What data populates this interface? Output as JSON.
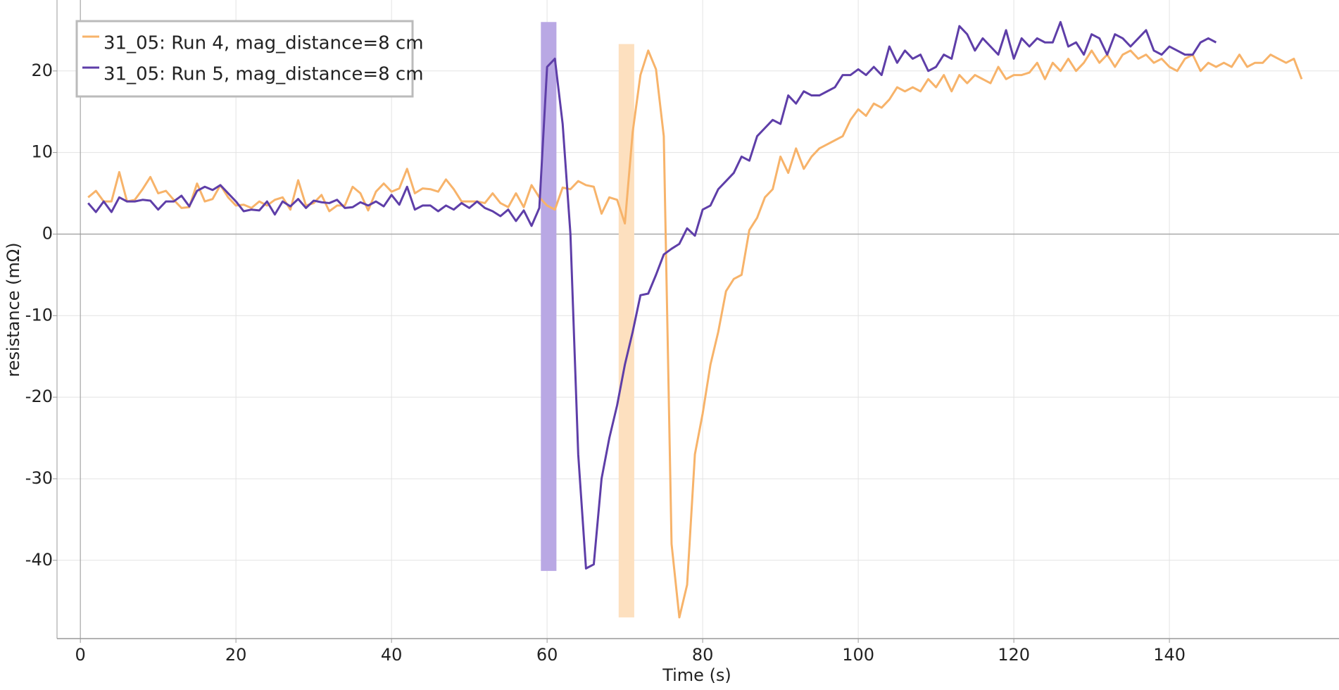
{
  "chart_data": {
    "type": "line",
    "xlabel": "Time (s)",
    "ylabel": "resistance (mΩ)",
    "xlim": [
      -3,
      161.8
    ],
    "ylim": [
      -49.6,
      28.7
    ],
    "xticks": [
      0,
      20,
      40,
      60,
      80,
      100,
      120,
      140
    ],
    "yticks": [
      -40,
      -30,
      -20,
      -10,
      0,
      10,
      20
    ],
    "grid": true,
    "legend": "upper left",
    "spans": [
      {
        "x0": 59.2,
        "x1": 61.2,
        "y0": -41.3,
        "y1": 26,
        "color": "#b9a8e4"
      },
      {
        "x0": 69.2,
        "x1": 71.2,
        "y0": -47,
        "y1": 23.3,
        "color": "#fde0bf"
      }
    ],
    "series": [
      {
        "name": "31_05: Run 4, mag_distance=8 cm",
        "color": "#f7b36a",
        "x": [
          1,
          2,
          3,
          4,
          5,
          6,
          7,
          8,
          9,
          10,
          11,
          12,
          13,
          14,
          15,
          16,
          17,
          18,
          19,
          20,
          21,
          22,
          23,
          24,
          25,
          26,
          27,
          28,
          29,
          30,
          31,
          32,
          33,
          34,
          35,
          36,
          37,
          38,
          39,
          40,
          41,
          42,
          43,
          44,
          45,
          46,
          47,
          48,
          49,
          50,
          51,
          52,
          53,
          54,
          55,
          56,
          57,
          58,
          59,
          60,
          61,
          62,
          63,
          64,
          65,
          66,
          67,
          68,
          69,
          70,
          71,
          72,
          73,
          74,
          75,
          76,
          77,
          78,
          79,
          80,
          81,
          82,
          83,
          84,
          85,
          86,
          87,
          88,
          89,
          90,
          91,
          92,
          93,
          94,
          95,
          96,
          97,
          98,
          99,
          100,
          101,
          102,
          103,
          104,
          105,
          106,
          107,
          108,
          109,
          110,
          111,
          112,
          113,
          114,
          115,
          116,
          117,
          118,
          119,
          120,
          121,
          122,
          123,
          124,
          125,
          126,
          127,
          128,
          129,
          130,
          131,
          132,
          133,
          134,
          135,
          136,
          137,
          138,
          139,
          140,
          141,
          142,
          143,
          144,
          145,
          146,
          147,
          148,
          149,
          150,
          151,
          152,
          153,
          154,
          155,
          156,
          157
        ],
        "values": [
          4.5,
          5.3,
          4,
          4,
          7.6,
          4,
          4.2,
          5.5,
          7,
          5,
          5.3,
          4.2,
          3.2,
          3.3,
          6.2,
          4,
          4.3,
          6,
          4.5,
          3.5,
          3.6,
          3.2,
          4,
          3.5,
          4.2,
          4.5,
          3,
          6.6,
          3.5,
          3.8,
          4.8,
          2.8,
          3.5,
          3.5,
          5.8,
          5,
          2.9,
          5.2,
          6.2,
          5.2,
          5.6,
          8,
          5,
          5.6,
          5.5,
          5.2,
          6.7,
          5.5,
          4,
          4,
          4,
          3.8,
          5,
          3.8,
          3.3,
          5,
          3.3,
          6,
          4.5,
          3.5,
          3,
          5.7,
          5.5,
          6.5,
          6,
          5.8,
          2.5,
          4.5,
          4.2,
          1.3,
          12.5,
          19.5,
          22.5,
          20.2,
          12,
          -38,
          -47,
          -43,
          -27,
          -22,
          -16,
          -12,
          -7,
          -5.5,
          -5,
          0.5,
          2,
          4.5,
          5.5,
          9.5,
          7.5,
          10.5,
          8,
          9.5,
          10.5,
          11,
          11.5,
          12,
          14,
          15.3,
          14.5,
          16,
          15.5,
          16.5,
          18,
          17.5,
          18,
          17.5,
          19,
          18,
          19.5,
          17.5,
          19.5,
          18.5,
          19.5,
          19,
          18.5,
          20.5,
          19,
          19.5,
          19.5,
          19.8,
          21,
          19,
          21,
          20,
          21.5,
          20,
          21,
          22.5,
          21,
          22,
          20.5,
          22,
          22.5,
          21.5,
          22,
          21,
          21.5,
          20.5,
          20,
          21.5,
          22,
          20,
          21,
          20.5,
          21,
          20.5,
          22,
          20.5,
          21,
          21,
          22,
          21.5,
          21,
          21.5,
          19
        ]
      },
      {
        "name": "31_05: Run 5, mag_distance=8 cm",
        "color": "#5e3ea8",
        "x": [
          1,
          2,
          3,
          4,
          5,
          6,
          7,
          8,
          9,
          10,
          11,
          12,
          13,
          14,
          15,
          16,
          17,
          18,
          19,
          20,
          21,
          22,
          23,
          24,
          25,
          26,
          27,
          28,
          29,
          30,
          31,
          32,
          33,
          34,
          35,
          36,
          37,
          38,
          39,
          40,
          41,
          42,
          43,
          44,
          45,
          46,
          47,
          48,
          49,
          50,
          51,
          52,
          53,
          54,
          55,
          56,
          57,
          58,
          59,
          60,
          61,
          62,
          63,
          64,
          65,
          66,
          67,
          68,
          69,
          70,
          71,
          72,
          73,
          74,
          75,
          76,
          77,
          78,
          79,
          80,
          81,
          82,
          83,
          84,
          85,
          86,
          87,
          88,
          89,
          90,
          91,
          92,
          93,
          94,
          95,
          96,
          97,
          98,
          99,
          100,
          101,
          102,
          103,
          104,
          105,
          106,
          107,
          108,
          109,
          110,
          111,
          112,
          113,
          114,
          115,
          116,
          117,
          118,
          119,
          120,
          121,
          122,
          123,
          124,
          125,
          126,
          127,
          128,
          129,
          130,
          131,
          132,
          133,
          134,
          135,
          136,
          137,
          138,
          139,
          140,
          141,
          142,
          143,
          144,
          145,
          146
        ],
        "values": [
          3.8,
          2.7,
          4,
          2.7,
          4.5,
          4,
          4,
          4.2,
          4.1,
          3,
          4,
          4,
          4.7,
          3.4,
          5.3,
          5.8,
          5.4,
          6,
          5,
          4,
          2.8,
          3,
          2.9,
          4,
          2.4,
          4,
          3.4,
          4.3,
          3.2,
          4.1,
          3.9,
          3.8,
          4.2,
          3.2,
          3.3,
          3.9,
          3.5,
          4,
          3.4,
          4.8,
          3.6,
          5.8,
          3,
          3.5,
          3.5,
          2.8,
          3.5,
          3,
          3.8,
          3.2,
          4,
          3.2,
          2.8,
          2.2,
          3,
          1.6,
          2.9,
          1,
          3.2,
          20.5,
          21.5,
          13.5,
          0,
          -27,
          -41,
          -40.5,
          -30,
          -25,
          -21,
          -16,
          -12,
          -7.5,
          -7.3,
          -5,
          -2.5,
          -1.8,
          -1.2,
          0.7,
          -0.2,
          3,
          3.5,
          5.5,
          6.5,
          7.5,
          9.5,
          9,
          12,
          13,
          14,
          13.5,
          17,
          16,
          17.5,
          17,
          17,
          17.5,
          18,
          19.5,
          19.5,
          20.2,
          19.5,
          20.5,
          19.5,
          23,
          21,
          22.5,
          21.5,
          22,
          20,
          20.5,
          22,
          21.5,
          25.5,
          24.5,
          22.5,
          24,
          23,
          22,
          25,
          21.5,
          24,
          23,
          24,
          23.5,
          23.5,
          26,
          23,
          23.5,
          22,
          24.5,
          24,
          22,
          24.5,
          24,
          23,
          24,
          25,
          22.5,
          22,
          23,
          22.5,
          22,
          22,
          23.5,
          24,
          23.5
        ]
      }
    ]
  }
}
